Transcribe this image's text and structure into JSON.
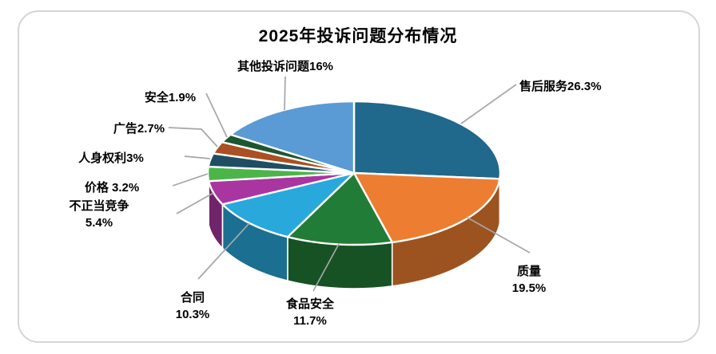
{
  "title": "2025年投诉问题分布情况",
  "colors": {
    "background": "#ffffff",
    "card_border": "#d5d5d5",
    "slice_separator": "#ffffff",
    "leader_line": "#a6a6a6",
    "label_text": "#000000"
  },
  "chart_data": {
    "type": "pie",
    "style": "3d",
    "title": "2025年投诉问题分布情况",
    "start_angle_deg": 0,
    "direction": "clockwise",
    "legend": "none",
    "labels_format": "category+percent",
    "series": [
      {
        "name": "售后服务",
        "value": 26.3,
        "color": "#20688C",
        "label_lines": [
          "售后服务26.3%"
        ]
      },
      {
        "name": "质量",
        "value": 19.5,
        "color": "#ED7D31",
        "label_lines": [
          "质量",
          "19.5%"
        ]
      },
      {
        "name": "食品安全",
        "value": 11.7,
        "color": "#217C37",
        "label_lines": [
          "食品安全",
          "11.7%"
        ]
      },
      {
        "name": "合同",
        "value": 10.3,
        "color": "#29A8DC",
        "label_lines": [
          "合同",
          "10.3%"
        ]
      },
      {
        "name": "不正当竞争",
        "value": 5.4,
        "color": "#A936A0",
        "label_lines": [
          "不正当竞争",
          "5.4%"
        ]
      },
      {
        "name": "价格",
        "value": 3.2,
        "color": "#4CB548",
        "label_lines": [
          "价格 3.2%"
        ]
      },
      {
        "name": "人身权利",
        "value": 3.0,
        "color": "#1F4E64",
        "label_lines": [
          "人身权利3%"
        ]
      },
      {
        "name": "广告",
        "value": 2.7,
        "color": "#AA5023",
        "label_lines": [
          "广告2.7%"
        ]
      },
      {
        "name": "安全",
        "value": 1.9,
        "color": "#1E5631",
        "label_lines": [
          "安全1.9%"
        ]
      },
      {
        "name": "其他投诉问题",
        "value": 16.0,
        "color": "#5B9BD5",
        "label_lines": [
          "其他投诉问题16%"
        ]
      }
    ]
  }
}
